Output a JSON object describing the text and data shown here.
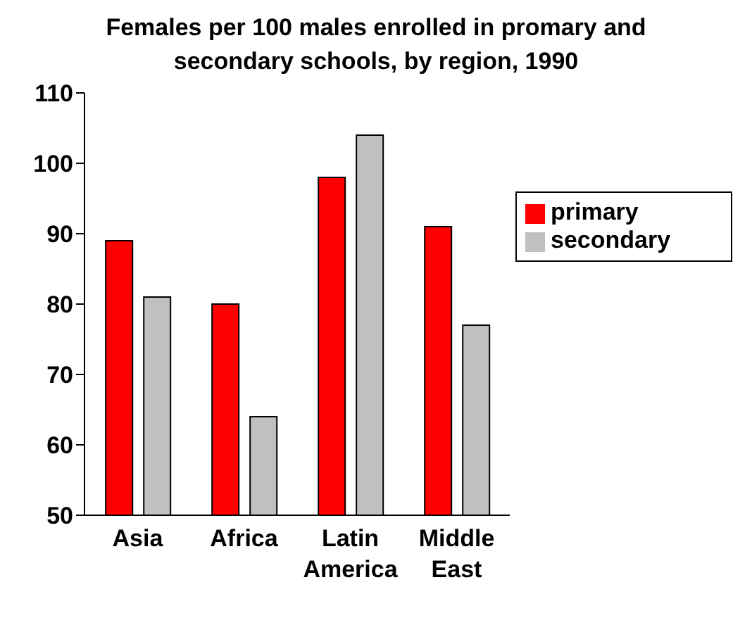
{
  "chart_data": {
    "type": "bar",
    "title": "Females per 100 males enrolled in promary and secondary schools, by region, 1990",
    "categories": [
      "Asia",
      "Africa",
      "Latin America",
      "Middle East"
    ],
    "series": [
      {
        "name": "primary",
        "color": "#ff0000",
        "values": [
          89,
          80,
          98,
          91
        ]
      },
      {
        "name": "secondary",
        "color": "#c0c0c0",
        "values": [
          81,
          64,
          104,
          77
        ]
      }
    ],
    "ylim": [
      50,
      110
    ],
    "yticks": [
      50,
      60,
      70,
      80,
      90,
      100,
      110
    ],
    "grid": false,
    "legend": "top right"
  }
}
